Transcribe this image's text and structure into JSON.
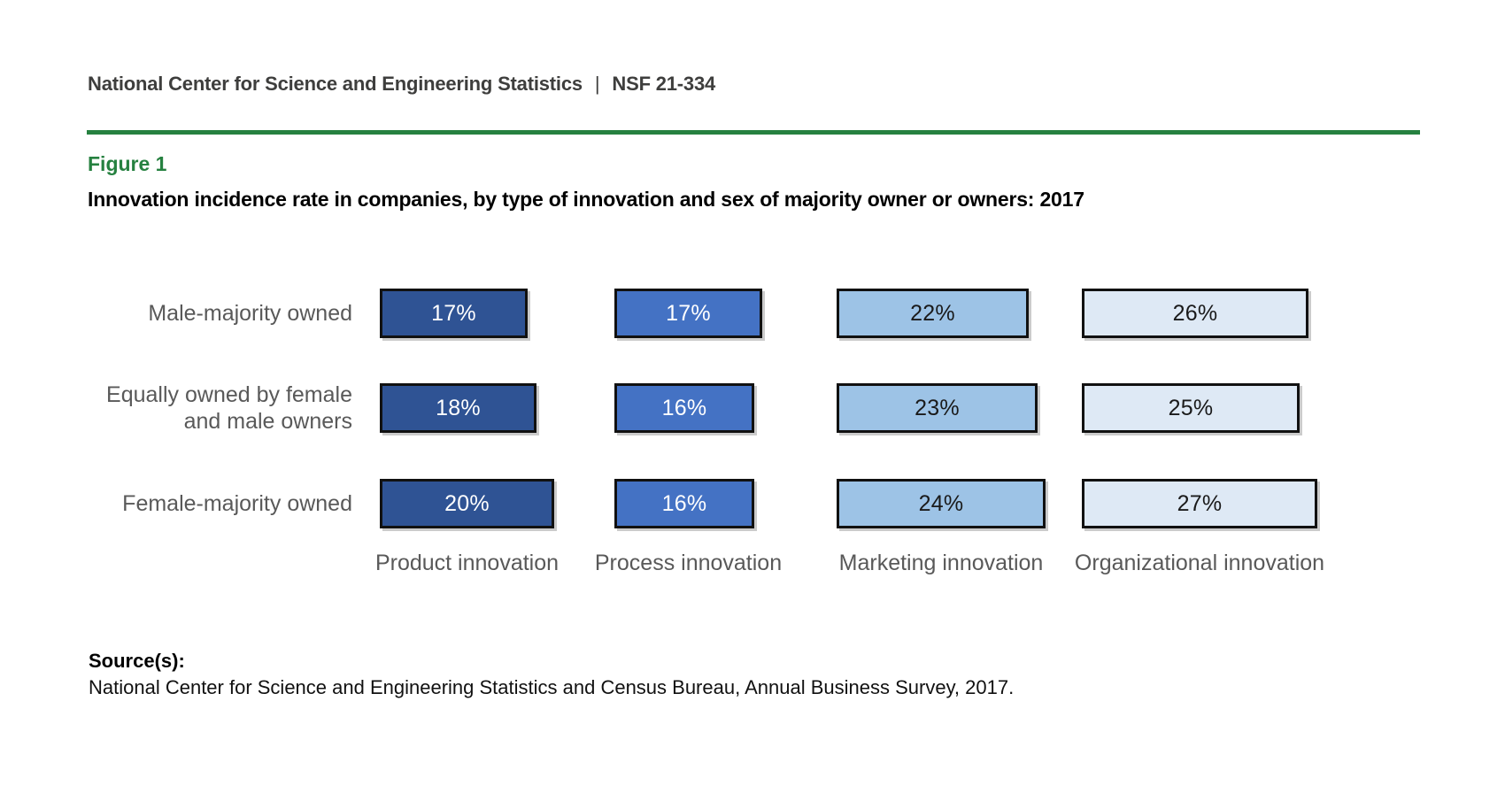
{
  "page": {
    "header": {
      "org": "National Center for Science and Engineering Statistics",
      "separator": "|",
      "report_id": "NSF 21-334"
    },
    "figure_label": "Figure 1",
    "title": "Innovation incidence rate in companies, by type of innovation and sex of majority owner or owners: 2017",
    "source_label": "Source(s):",
    "source_text": "National Center for Science and Engineering Statistics and Census Bureau, Annual Business Survey, 2017."
  },
  "colors": {
    "accent_green": "#268140",
    "header_text": "#3e3e3d",
    "label_gray": "#595959",
    "bar_border": "#111111",
    "background": "#ffffff"
  },
  "chart_data": {
    "type": "bar",
    "orientation": "horizontal",
    "value_unit": "%",
    "title": "Innovation incidence rate in companies, by type of innovation and sex of majority owner or owners: 2017",
    "categories": [
      "Product innovation",
      "Process innovation",
      "Marketing innovation",
      "Organizational innovation"
    ],
    "category_colors": [
      "#2f5394",
      "#4472c4",
      "#9dc3e6",
      "#dee9f5"
    ],
    "category_value_text_colors": [
      "#ffffff",
      "#ffffff",
      "#1a1a1a",
      "#1a1a1a"
    ],
    "rows": [
      {
        "name": "Male-majority owned",
        "label_lines": [
          "Male-majority owned"
        ],
        "values": [
          17,
          17,
          22,
          26
        ]
      },
      {
        "name": "Equally owned by female and male owners",
        "label_lines": [
          "Equally owned by female",
          "and male owners"
        ],
        "values": [
          18,
          16,
          23,
          25
        ]
      },
      {
        "name": "Female-majority owned",
        "label_lines": [
          "Female-majority owned"
        ],
        "values": [
          20,
          16,
          24,
          27
        ]
      }
    ],
    "value_labels_inside_bars": true,
    "gridlines": false,
    "legend": "none"
  }
}
